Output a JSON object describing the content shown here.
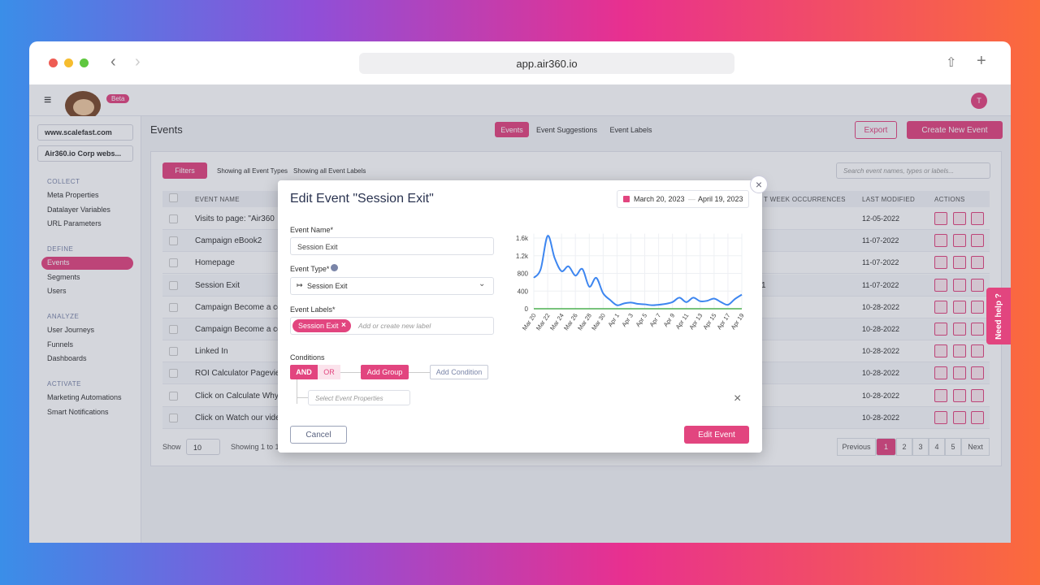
{
  "browser": {
    "url": "app.air360.io"
  },
  "header": {
    "beta": "Beta",
    "avatar": "T"
  },
  "sidebar": {
    "site": "www.scalefast.com",
    "project": "Air360.io Corp webs...",
    "sections": [
      {
        "title": "COLLECT",
        "items": [
          "Meta Properties",
          "Datalayer Variables",
          "URL Parameters"
        ]
      },
      {
        "title": "DEFINE",
        "items": [
          "Events",
          "Segments",
          "Users"
        ]
      },
      {
        "title": "ANALYZE",
        "items": [
          "User Journeys",
          "Funnels",
          "Dashboards"
        ]
      },
      {
        "title": "ACTIVATE",
        "items": [
          "Marketing Automations",
          "Smart Notifications"
        ]
      }
    ]
  },
  "page": {
    "title": "Events",
    "tabs": [
      "Events",
      "Event Suggestions",
      "Event Labels"
    ],
    "export": "Export",
    "create": "Create New Event"
  },
  "toolbar": {
    "filters": "Filters",
    "types": "Showing all Event Types",
    "labels": "Showing all Event Labels",
    "search": "Search event names, types or labels..."
  },
  "table": {
    "columns": {
      "name": "EVENT NAME",
      "occurrences": "T WEEK OCCURRENCES",
      "modified": "LAST MODIFIED",
      "actions": "ACTIONS"
    },
    "rows": [
      {
        "name": "Visits to page: \"Air360",
        "modified": "12-05-2022"
      },
      {
        "name": "Campaign eBook2",
        "modified": "11-07-2022"
      },
      {
        "name": "Homepage",
        "modified": "11-07-2022"
      },
      {
        "name": "Session Exit",
        "occurrences": "1",
        "modified": "11-07-2022"
      },
      {
        "name": "Campaign Become a co",
        "modified": "10-28-2022"
      },
      {
        "name": "Campaign Become a co",
        "modified": "10-28-2022"
      },
      {
        "name": "Linked In",
        "modified": "10-28-2022"
      },
      {
        "name": "ROI Calculator Pageviev",
        "modified": "10-28-2022"
      },
      {
        "name": "Click on Calculate Why",
        "modified": "10-28-2022"
      },
      {
        "name": "Click on Watch our vide",
        "modified": "10-28-2022"
      }
    ]
  },
  "footer": {
    "show": "Show",
    "page_size": "10",
    "showing": "Showing 1 to 1",
    "pages": [
      "Previous",
      "1",
      "2",
      "3",
      "4",
      "5",
      "Next"
    ]
  },
  "help": "Need help ?",
  "modal": {
    "title": "Edit Event \"Session Exit\"",
    "date_start": "March 20, 2023",
    "date_end": "April 19, 2023",
    "name_label": "Event Name*",
    "name_value": "Session Exit",
    "type_label": "Event Type*",
    "type_value": "Session Exit",
    "labels_label": "Event Labels*",
    "label_tag": "Session Exit",
    "labels_placeholder": "Add or create new label",
    "conditions": "Conditions",
    "and": "AND",
    "or": "OR",
    "add_group": "Add Group",
    "add_condition": "Add Condition",
    "select_props": "Select Event Properties",
    "cancel": "Cancel",
    "submit": "Edit Event"
  },
  "chart_data": {
    "type": "line",
    "color": "#3d86f0",
    "categories": [
      "Mar 20",
      null,
      "Mar 22",
      null,
      "Mar 24",
      null,
      "Mar 26",
      null,
      "Mar 28",
      null,
      "Mar 30",
      null,
      "Apr 1",
      null,
      "Apr 3",
      null,
      "Apr 5",
      null,
      "Apr 7",
      null,
      "Apr 9",
      null,
      "Apr 11",
      null,
      "Apr 13",
      null,
      "Apr 15",
      null,
      "Apr 17",
      null,
      "Apr 19"
    ],
    "values": [
      700,
      900,
      1650,
      1150,
      850,
      960,
      750,
      900,
      500,
      700,
      350,
      200,
      80,
      120,
      140,
      110,
      100,
      80,
      90,
      110,
      150,
      250,
      150,
      250,
      170,
      180,
      230,
      150,
      90,
      220,
      320
    ],
    "ylim": [
      0,
      1700
    ],
    "yticks": [
      0,
      400,
      800,
      {
        "value": 1200,
        "label": "1.2k"
      },
      {
        "value": 1600,
        "label": "1.6k"
      }
    ],
    "grid": true
  }
}
